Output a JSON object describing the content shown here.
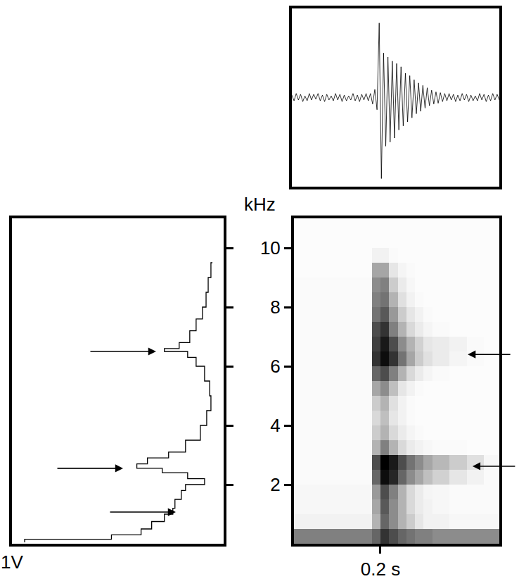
{
  "chart_data": [
    {
      "type": "line",
      "color": "#000000",
      "tick_labels": false,
      "x": [
        0,
        0.005,
        0.01,
        0.015,
        0.02,
        0.025,
        0.03,
        0.035,
        0.04,
        0.045,
        0.05,
        0.055,
        0.06,
        0.065,
        0.07,
        0.075,
        0.08,
        0.085,
        0.09,
        0.095,
        0.1,
        0.105,
        0.11,
        0.115,
        0.12,
        0.125,
        0.13,
        0.135,
        0.14,
        0.145,
        0.15,
        0.155,
        0.16,
        0.165,
        0.17,
        0.175,
        0.18,
        0.185,
        0.19,
        0.195,
        0.2,
        0.205,
        0.21,
        0.215,
        0.22,
        0.225,
        0.23,
        0.235,
        0.24,
        0.245,
        0.25,
        0.255,
        0.26,
        0.265,
        0.27,
        0.275,
        0.28,
        0.285,
        0.29,
        0.295,
        0.3,
        0.305,
        0.31,
        0.315,
        0.32,
        0.325,
        0.33,
        0.335,
        0.34,
        0.345,
        0.35,
        0.355,
        0.36,
        0.365,
        0.37,
        0.375,
        0.38,
        0.385,
        0.39,
        0.395,
        0.4,
        0.405,
        0.41,
        0.415,
        0.42,
        0.425,
        0.43,
        0.435,
        0.44,
        0.445,
        0.45,
        0.455,
        0.46,
        0.465,
        0.47,
        0.475
      ],
      "values": [
        0.03,
        -0.04,
        0.05,
        -0.03,
        0.04,
        -0.05,
        0.02,
        -0.04,
        0.05,
        -0.03,
        0.04,
        -0.02,
        0.05,
        -0.04,
        0.03,
        -0.05,
        0.04,
        -0.03,
        0.02,
        -0.04,
        0.05,
        -0.03,
        0.04,
        -0.05,
        0.03,
        -0.04,
        0.02,
        -0.03,
        0.05,
        -0.04,
        0.03,
        -0.05,
        0.04,
        -0.03,
        0.05,
        -0.04,
        0.05,
        -0.08,
        0.1,
        -0.15,
        0.92,
        -1.0,
        0.55,
        -0.6,
        0.5,
        -0.55,
        0.45,
        -0.5,
        0.42,
        -0.4,
        0.38,
        -0.35,
        0.3,
        -0.3,
        0.27,
        -0.25,
        0.22,
        -0.2,
        0.18,
        -0.17,
        0.15,
        -0.13,
        0.12,
        -0.1,
        0.09,
        -0.08,
        0.07,
        -0.07,
        0.06,
        -0.05,
        0.05,
        -0.04,
        0.05,
        -0.03,
        0.04,
        -0.05,
        0.03,
        -0.04,
        0.05,
        -0.03,
        0.04,
        -0.05,
        0.03,
        -0.04,
        0.02,
        -0.04,
        0.05,
        -0.03,
        0.04,
        -0.05,
        0.03,
        -0.04,
        0.05,
        -0.03,
        0.04,
        -0.03
      ],
      "xlim": [
        0,
        0.475
      ],
      "ylim": [
        -1.1,
        1.1
      ]
    },
    {
      "type": "line",
      "line_style": "step",
      "color": "#000000",
      "tick_labels": "x",
      "x": [
        0.94,
        0.53,
        0.39,
        0.34,
        0.28,
        0.24,
        0.23,
        0.2,
        0.18,
        0.09,
        0.17,
        0.29,
        0.41,
        0.36,
        0.26,
        0.18,
        0.11,
        0.08,
        0.06,
        0.066,
        0.09,
        0.13,
        0.17,
        0.28,
        0.21,
        0.16,
        0.13,
        0.1,
        0.083,
        0.073,
        0.06,
        0.053
      ],
      "y": [
        0.05,
        0.15,
        0.3,
        0.5,
        0.75,
        1.0,
        1.2,
        1.5,
        1.8,
        2.0,
        2.2,
        2.4,
        2.55,
        2.7,
        2.9,
        3.1,
        3.5,
        4.0,
        4.5,
        5.0,
        5.5,
        6.0,
        6.3,
        6.5,
        6.6,
        6.8,
        7.2,
        7.6,
        8.0,
        8.5,
        9.0,
        9.5
      ],
      "xlim": [
        1,
        0
      ],
      "xticks": [
        {
          "value": 1,
          "label": "1V"
        }
      ],
      "ylim": [
        0,
        11
      ],
      "yticks": [
        2,
        4,
        6,
        8,
        10
      ],
      "arrows": [
        {
          "x": 0.319,
          "y": 6.5
        },
        {
          "x": 0.475,
          "y": 2.55
        },
        {
          "x": 0.226,
          "y": 1.07
        }
      ]
    },
    {
      "type": "heatmap",
      "color": "#000000",
      "ylabel": "kHz",
      "x": [
        0,
        0.18,
        0.2,
        0.22,
        0.24,
        0.26,
        0.28,
        0.3,
        0.32,
        0.36,
        0.4,
        0.44,
        0.475
      ],
      "y": [
        0,
        0.5,
        1,
        1.5,
        2,
        2.5,
        3,
        3.5,
        4,
        4.5,
        5,
        5.5,
        6,
        6.5,
        7,
        7.5,
        8,
        8.5,
        9,
        9.5,
        10,
        10.5,
        11
      ],
      "z": [
        [
          0.5,
          0.6,
          0.8,
          0.7,
          0.6,
          0.55,
          0.5,
          0.5,
          0.45,
          0.45,
          0.45,
          0.45
        ],
        [
          0.05,
          0.3,
          0.6,
          0.45,
          0.3,
          0.2,
          0.1,
          0.05,
          0.05,
          0.03,
          0.03,
          0.03
        ],
        [
          0.03,
          0.35,
          0.65,
          0.45,
          0.3,
          0.15,
          0.08,
          0.05,
          0.03,
          0.02,
          0.02,
          0.02
        ],
        [
          0.03,
          0.4,
          0.7,
          0.5,
          0.3,
          0.15,
          0.08,
          0.04,
          0.03,
          0.02,
          0.02,
          0.02
        ],
        [
          0.02,
          0.6,
          0.95,
          0.85,
          0.6,
          0.45,
          0.35,
          0.25,
          0.18,
          0.1,
          0.05,
          0.02
        ],
        [
          0.02,
          0.7,
          1.0,
          0.9,
          0.7,
          0.55,
          0.45,
          0.35,
          0.28,
          0.2,
          0.12,
          0.03
        ],
        [
          0.02,
          0.3,
          0.5,
          0.3,
          0.15,
          0.08,
          0.05,
          0.03,
          0.02,
          0.02,
          0.01,
          0.01
        ],
        [
          0.02,
          0.2,
          0.3,
          0.15,
          0.08,
          0.04,
          0.02,
          0.01,
          0.01,
          0.01,
          0.01,
          0.01
        ],
        [
          0.02,
          0.15,
          0.25,
          0.1,
          0.05,
          0.02,
          0.01,
          0.01,
          0.01,
          0.01,
          0.01,
          0.01
        ],
        [
          0.02,
          0.2,
          0.3,
          0.12,
          0.05,
          0.02,
          0.01,
          0.01,
          0.01,
          0.01,
          0.01,
          0.01
        ],
        [
          0.02,
          0.35,
          0.45,
          0.25,
          0.1,
          0.05,
          0.02,
          0.01,
          0.01,
          0.01,
          0.01,
          0.01
        ],
        [
          0.02,
          0.6,
          0.7,
          0.5,
          0.3,
          0.15,
          0.08,
          0.04,
          0.02,
          0.01,
          0.01,
          0.01
        ],
        [
          0.02,
          0.8,
          0.95,
          0.8,
          0.55,
          0.35,
          0.2,
          0.12,
          0.08,
          0.04,
          0.02,
          0.01
        ],
        [
          0.02,
          0.75,
          0.9,
          0.7,
          0.45,
          0.3,
          0.18,
          0.1,
          0.08,
          0.05,
          0.02,
          0.01
        ],
        [
          0.02,
          0.7,
          0.8,
          0.5,
          0.3,
          0.15,
          0.08,
          0.04,
          0.02,
          0.01,
          0.01,
          0.01
        ],
        [
          0.02,
          0.55,
          0.65,
          0.4,
          0.2,
          0.1,
          0.05,
          0.02,
          0.01,
          0.01,
          0.01,
          0.01
        ],
        [
          0.02,
          0.5,
          0.55,
          0.3,
          0.12,
          0.05,
          0.02,
          0.01,
          0.01,
          0.01,
          0.01,
          0.01
        ],
        [
          0.02,
          0.45,
          0.5,
          0.2,
          0.08,
          0.03,
          0.01,
          0.01,
          0.01,
          0.01,
          0.01,
          0.01
        ],
        [
          0.01,
          0.35,
          0.35,
          0.1,
          0.04,
          0.02,
          0.01,
          0.01,
          0.01,
          0.01,
          0.01,
          0.01
        ],
        [
          0.01,
          0.05,
          0.05,
          0.02,
          0.01,
          0.01,
          0.01,
          0.01,
          0.01,
          0.01,
          0.01,
          0.01
        ],
        [
          0.01,
          0.01,
          0.01,
          0.01,
          0.01,
          0.01,
          0.01,
          0.01,
          0.01,
          0.01,
          0.01,
          0.01
        ],
        [
          0.01,
          0.01,
          0.01,
          0.01,
          0.01,
          0.01,
          0.01,
          0.01,
          0.01,
          0.01,
          0.01,
          0.01
        ]
      ],
      "zlim": [
        0,
        1
      ],
      "xlim": [
        0,
        0.475
      ],
      "xticks": [
        {
          "value": 0.2,
          "label": "0.2 s"
        }
      ],
      "ylim": [
        0,
        11
      ],
      "yticks": [
        2,
        4,
        6,
        8,
        10
      ],
      "arrows": [
        {
          "x": 0.402,
          "y": 6.4
        },
        {
          "x": 0.413,
          "y": 2.62
        }
      ]
    }
  ]
}
